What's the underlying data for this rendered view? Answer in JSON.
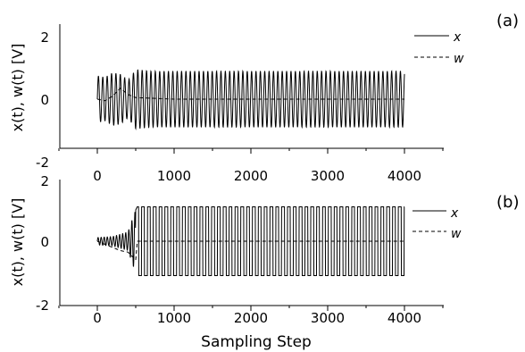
{
  "chart_data": [
    {
      "type": "line",
      "panel_label": "(a)",
      "ylabel": "x(t), w(t) [V]",
      "xlabel": "",
      "xlim": [
        -500,
        4500
      ],
      "ylim": [
        -2,
        2
      ],
      "x_ticks": [
        "0",
        "1000",
        "2000",
        "3000",
        "4000"
      ],
      "y_ticks": [
        "2",
        "0",
        "-2"
      ],
      "legend_position": "top-right",
      "series": [
        {
          "name": "x",
          "style": "solid",
          "x": [
            0,
            100,
            200,
            300,
            400,
            500,
            700,
            1000,
            2000,
            3000,
            4000
          ],
          "amplitude": [
            0.75,
            0.7,
            0.85,
            0.8,
            0.6,
            0.95,
            0.9,
            0.9,
            0.9,
            0.9,
            0.9
          ]
        },
        {
          "name": "w",
          "style": "dashed",
          "x": [
            0,
            100,
            200,
            300,
            400,
            500,
            1000,
            2000,
            3000,
            4000
          ],
          "y": [
            0.0,
            -0.05,
            0.1,
            0.35,
            0.15,
            0.05,
            0.0,
            0.0,
            0.0,
            0.0
          ]
        }
      ]
    },
    {
      "type": "line",
      "panel_label": "(b)",
      "ylabel": "x(t), w(t) [V]",
      "xlabel": "Sampling Step",
      "xlim": [
        -500,
        4500
      ],
      "ylim": [
        -2,
        2
      ],
      "x_ticks": [
        "0",
        "1000",
        "2000",
        "3000",
        "4000"
      ],
      "y_ticks": [
        "2",
        "0",
        "-2"
      ],
      "legend_position": "right",
      "series": [
        {
          "name": "x",
          "style": "solid",
          "x": [
            0,
            200,
            400,
            480,
            520,
            1000,
            2000,
            3000,
            4000
          ],
          "amplitude": [
            0.12,
            0.15,
            0.3,
            0.9,
            1.1,
            1.1,
            1.1,
            1.1,
            1.1
          ]
        },
        {
          "name": "w",
          "style": "dashed",
          "x": [
            0,
            100,
            200,
            300,
            400,
            500,
            520,
            4000
          ],
          "y": [
            0.0,
            -0.1,
            -0.2,
            -0.3,
            -0.35,
            -0.6,
            0.0,
            0.0
          ]
        }
      ]
    }
  ]
}
